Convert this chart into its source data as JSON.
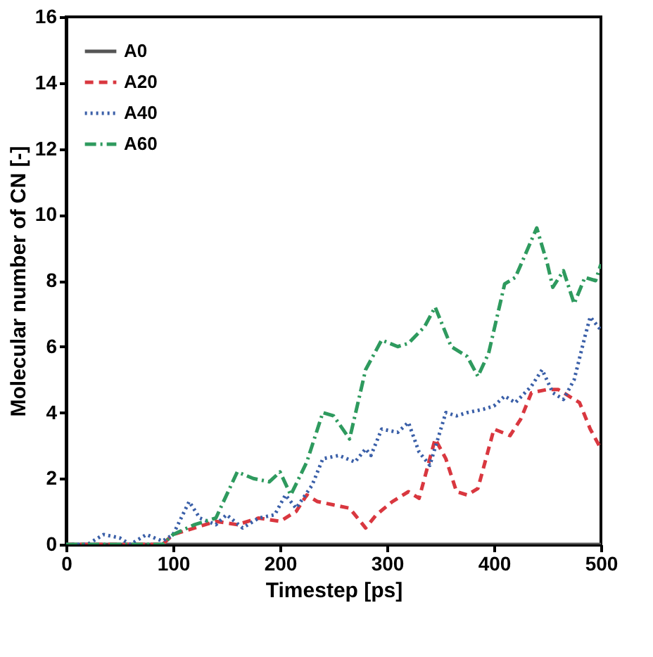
{
  "chart_data": {
    "type": "line",
    "xlabel": "Timestep [ps]",
    "ylabel": "Molecular number of CN [-]",
    "xlim": [
      0,
      500
    ],
    "xticks": [
      0,
      100,
      200,
      300,
      400,
      500
    ],
    "ylim": [
      0,
      16
    ],
    "yticks": [
      0,
      2,
      4,
      6,
      8,
      10,
      12,
      14,
      16
    ],
    "grid": false,
    "legend": "top left",
    "marker": "none",
    "series": [
      {
        "name": "A0",
        "color": "#555555",
        "line_style": "solid",
        "x": [
          0,
          100,
          200,
          300,
          400,
          500
        ],
        "values": [
          0,
          0,
          0,
          0,
          0,
          0
        ]
      },
      {
        "name": "A20",
        "color": "#d9373f",
        "line_style": "dashed",
        "x": [
          0,
          90,
          100,
          120,
          140,
          160,
          180,
          200,
          215,
          225,
          235,
          250,
          265,
          280,
          290,
          305,
          320,
          330,
          345,
          355,
          365,
          375,
          385,
          400,
          415,
          425,
          435,
          450,
          460,
          470,
          480,
          490,
          500
        ],
        "values": [
          0,
          0,
          0.3,
          0.5,
          0.7,
          0.6,
          0.8,
          0.7,
          1.0,
          1.5,
          1.3,
          1.2,
          1.1,
          0.5,
          0.9,
          1.3,
          1.6,
          1.4,
          3.2,
          2.6,
          1.6,
          1.5,
          1.7,
          3.5,
          3.3,
          3.8,
          4.6,
          4.7,
          4.7,
          4.5,
          4.3,
          3.5,
          2.9
        ]
      },
      {
        "name": "A40",
        "color": "#3a5fa8",
        "line_style": "dotted",
        "x": [
          0,
          20,
          35,
          50,
          60,
          75,
          90,
          100,
          115,
          125,
          140,
          150,
          165,
          180,
          195,
          205,
          215,
          230,
          240,
          255,
          270,
          280,
          285,
          295,
          310,
          320,
          330,
          340,
          355,
          365,
          375,
          390,
          400,
          410,
          420,
          435,
          445,
          455,
          465,
          475,
          485,
          490,
          500
        ],
        "values": [
          0,
          0,
          0.3,
          0.2,
          0,
          0.3,
          0.1,
          0.3,
          1.3,
          0.8,
          0.6,
          0.9,
          0.5,
          0.8,
          0.9,
          1.5,
          1.1,
          1.8,
          2.6,
          2.7,
          2.5,
          2.9,
          2.7,
          3.5,
          3.4,
          3.7,
          2.8,
          2.4,
          4.0,
          3.9,
          4.0,
          4.1,
          4.2,
          4.5,
          4.3,
          4.8,
          5.3,
          4.6,
          4.4,
          5.0,
          6.3,
          6.9,
          6.5
        ]
      },
      {
        "name": "A60",
        "color": "#2e9a5e",
        "line_style": "dashdot",
        "x": [
          0,
          90,
          100,
          120,
          140,
          160,
          175,
          190,
          200,
          210,
          225,
          240,
          250,
          265,
          280,
          295,
          310,
          320,
          335,
          345,
          360,
          375,
          385,
          395,
          410,
          420,
          440,
          450,
          455,
          465,
          475,
          485,
          495,
          500
        ],
        "values": [
          0,
          0,
          0.3,
          0.6,
          0.8,
          2.2,
          2.0,
          1.9,
          2.2,
          1.5,
          2.5,
          4.0,
          3.9,
          3.2,
          5.3,
          6.2,
          6.0,
          6.1,
          6.6,
          7.2,
          6.0,
          5.7,
          5.1,
          5.8,
          7.9,
          8.1,
          9.6,
          8.5,
          7.8,
          8.3,
          7.3,
          8.1,
          8.0,
          8.5
        ]
      }
    ]
  }
}
